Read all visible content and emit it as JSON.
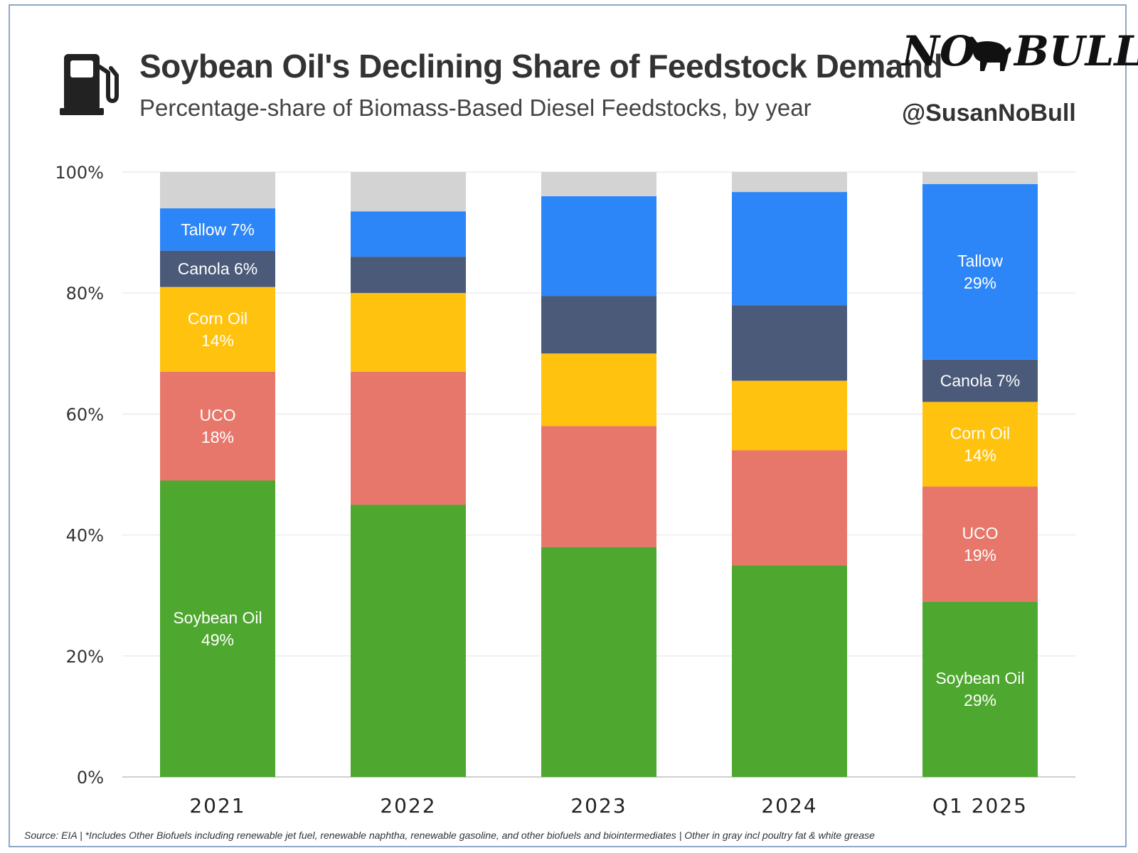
{
  "header": {
    "title": "Soybean Oil's Declining Share of Feedstock Demand",
    "subtitle": "Percentage-share of Biomass-Based Diesel Feedstocks, by year",
    "brand_left": "NO",
    "brand_right": "BULL",
    "handle": "@SusanNoBull",
    "icon": "fuel-pump-icon"
  },
  "footer": {
    "source": "Source: EIA | *Includes Other Biofuels including renewable jet fuel, renewable naphtha, renewable gasoline, and other biofuels and biointermediates | Other in gray incl poultry fat & white grease"
  },
  "chart_data": {
    "type": "bar",
    "stacked": true,
    "categories": [
      "2021",
      "2022",
      "2023",
      "2024",
      "Q1 2025"
    ],
    "ylim": [
      0,
      100
    ],
    "yticks": [
      0,
      20,
      40,
      60,
      80,
      100
    ],
    "ytick_labels": [
      "0%",
      "20%",
      "40%",
      "60%",
      "80%",
      "100%"
    ],
    "grid": true,
    "series": [
      {
        "key": "soy",
        "color": "#4ea72e",
        "values": [
          49,
          45,
          38,
          35,
          29
        ],
        "labels": [
          [
            "Soybean Oil",
            "49%"
          ],
          null,
          null,
          null,
          [
            "Soybean Oil",
            "29%"
          ]
        ]
      },
      {
        "key": "uco",
        "color": "#e8776b",
        "values": [
          18,
          22,
          20,
          19,
          19
        ],
        "labels": [
          [
            "UCO",
            "18%"
          ],
          null,
          null,
          null,
          [
            "UCO",
            "19%"
          ]
        ]
      },
      {
        "key": "corn",
        "color": "#ffc20e",
        "values": [
          14,
          13,
          12,
          11.5,
          14
        ],
        "labels": [
          [
            "Corn Oil",
            "14%"
          ],
          null,
          null,
          null,
          [
            "Corn Oil",
            "14%"
          ]
        ]
      },
      {
        "key": "canola",
        "color": "#4a5a78",
        "values": [
          6,
          6,
          9.5,
          12.5,
          7
        ],
        "labels": [
          [
            "Canola 6%"
          ],
          null,
          null,
          null,
          [
            "Canola 7%"
          ]
        ]
      },
      {
        "key": "tallow",
        "color": "#2d86f7",
        "values": [
          7,
          7.5,
          16.5,
          18.7,
          29
        ],
        "labels": [
          [
            "Tallow 7%"
          ],
          null,
          null,
          null,
          [
            "Tallow",
            "29%"
          ]
        ]
      },
      {
        "key": "other",
        "color": "#d3d3d3",
        "values": [
          6,
          6.5,
          4,
          3.3,
          2
        ],
        "labels": [
          null,
          null,
          null,
          null,
          null
        ]
      }
    ]
  }
}
